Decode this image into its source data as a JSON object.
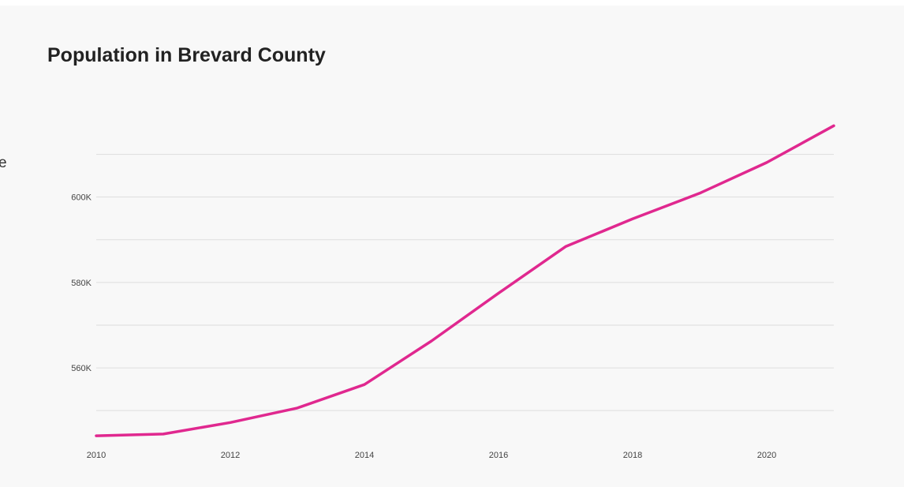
{
  "page": {
    "edge_text": "e"
  },
  "colors": {
    "background": "#f8f8f8",
    "line": "#e0288f",
    "grid": "#dddddd",
    "title": "#222222"
  },
  "chart_data": {
    "type": "line",
    "title": "Population in Brevard County",
    "xlabel": "",
    "ylabel": "",
    "grid": true,
    "x": [
      2010,
      2011,
      2012,
      2013,
      2014,
      2015,
      2016,
      2017,
      2018,
      2019,
      2020,
      2021
    ],
    "series": [
      {
        "values": [
          544100,
          544500,
          547200,
          550600,
          556100,
          566300,
          577500,
          588400,
          594900,
          600900,
          608100,
          616700
        ]
      }
    ],
    "xlim": [
      2010,
      2021
    ],
    "ylim": [
      543750,
      617500
    ],
    "gridlines": [
      550000,
      560000,
      570000,
      580000,
      590000,
      600000,
      610000
    ],
    "y_ticks": [
      {
        "value": 560000,
        "label": "560K"
      },
      {
        "value": 580000,
        "label": "580K"
      },
      {
        "value": 600000,
        "label": "600K"
      }
    ],
    "x_ticks": [
      {
        "value": 2010,
        "label": "2010"
      },
      {
        "value": 2012,
        "label": "2012"
      },
      {
        "value": 2014,
        "label": "2014"
      },
      {
        "value": 2016,
        "label": "2016"
      },
      {
        "value": 2018,
        "label": "2018"
      },
      {
        "value": 2020,
        "label": "2020"
      }
    ]
  }
}
